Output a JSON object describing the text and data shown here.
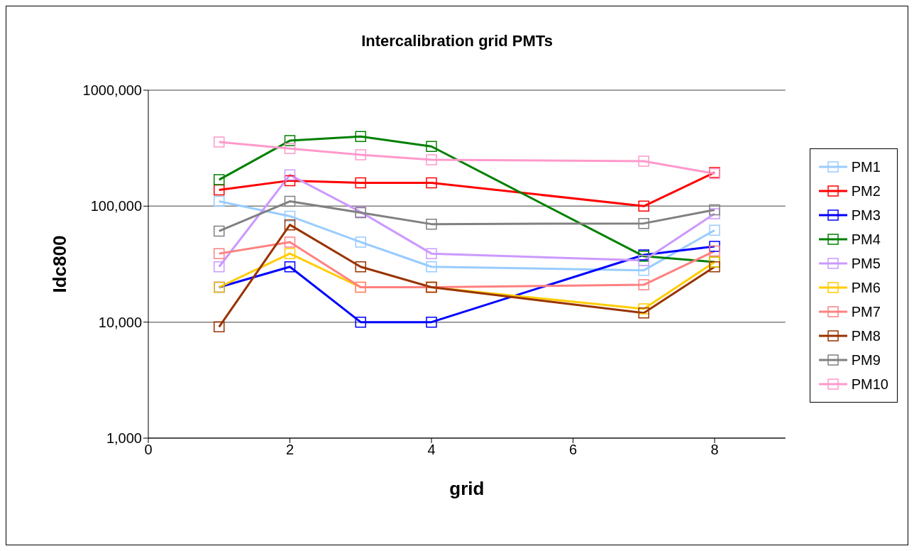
{
  "chart_data": {
    "type": "line",
    "title": "Intercalibration grid PMTs",
    "xlabel": "grid",
    "ylabel": "Idc800",
    "x": [
      1,
      2,
      3,
      4,
      7,
      8
    ],
    "series": [
      {
        "name": "PM1",
        "color": "#99ccff",
        "values": [
          110000,
          82000,
          49000,
          30000,
          28000,
          62000
        ]
      },
      {
        "name": "PM2",
        "color": "#ff0000",
        "values": [
          138000,
          166000,
          159000,
          159000,
          100000,
          195000
        ]
      },
      {
        "name": "PM3",
        "color": "#0000ff",
        "values": [
          20000,
          30000,
          10000,
          10000,
          38000,
          45000
        ]
      },
      {
        "name": "PM4",
        "color": "#008000",
        "values": [
          169000,
          367000,
          399000,
          327000,
          37000,
          33000
        ]
      },
      {
        "name": "PM5",
        "color": "#cc99ff",
        "values": [
          30000,
          186000,
          89000,
          39000,
          34000,
          86000
        ]
      },
      {
        "name": "PM6",
        "color": "#ffcc00",
        "values": [
          20000,
          39000,
          20000,
          20000,
          13000,
          33000
        ]
      },
      {
        "name": "PM7",
        "color": "#ff8080",
        "values": [
          39000,
          49000,
          20000,
          20000,
          21000,
          41000
        ]
      },
      {
        "name": "PM8",
        "color": "#993300",
        "values": [
          9100,
          69000,
          30000,
          20000,
          12000,
          30000
        ]
      },
      {
        "name": "PM9",
        "color": "#808080",
        "values": [
          61000,
          110000,
          88000,
          70000,
          71000,
          93000
        ]
      },
      {
        "name": "PM10",
        "color": "#ff99cc",
        "values": [
          357000,
          314000,
          277000,
          251000,
          244000,
          191000
        ]
      }
    ],
    "xlim": [
      0,
      9
    ],
    "xticks": [
      0,
      2,
      4,
      6,
      8
    ],
    "ylim": [
      1000,
      1000000
    ],
    "yticks": [
      {
        "value": 1000,
        "label": "1,000"
      },
      {
        "value": 10000,
        "label": "10,000"
      },
      {
        "value": 100000,
        "label": "100,000"
      },
      {
        "value": 1000000,
        "label": "1000,000"
      }
    ],
    "log": true,
    "grid": "y",
    "legend": "right",
    "marker": "square",
    "line_style": "solid"
  }
}
